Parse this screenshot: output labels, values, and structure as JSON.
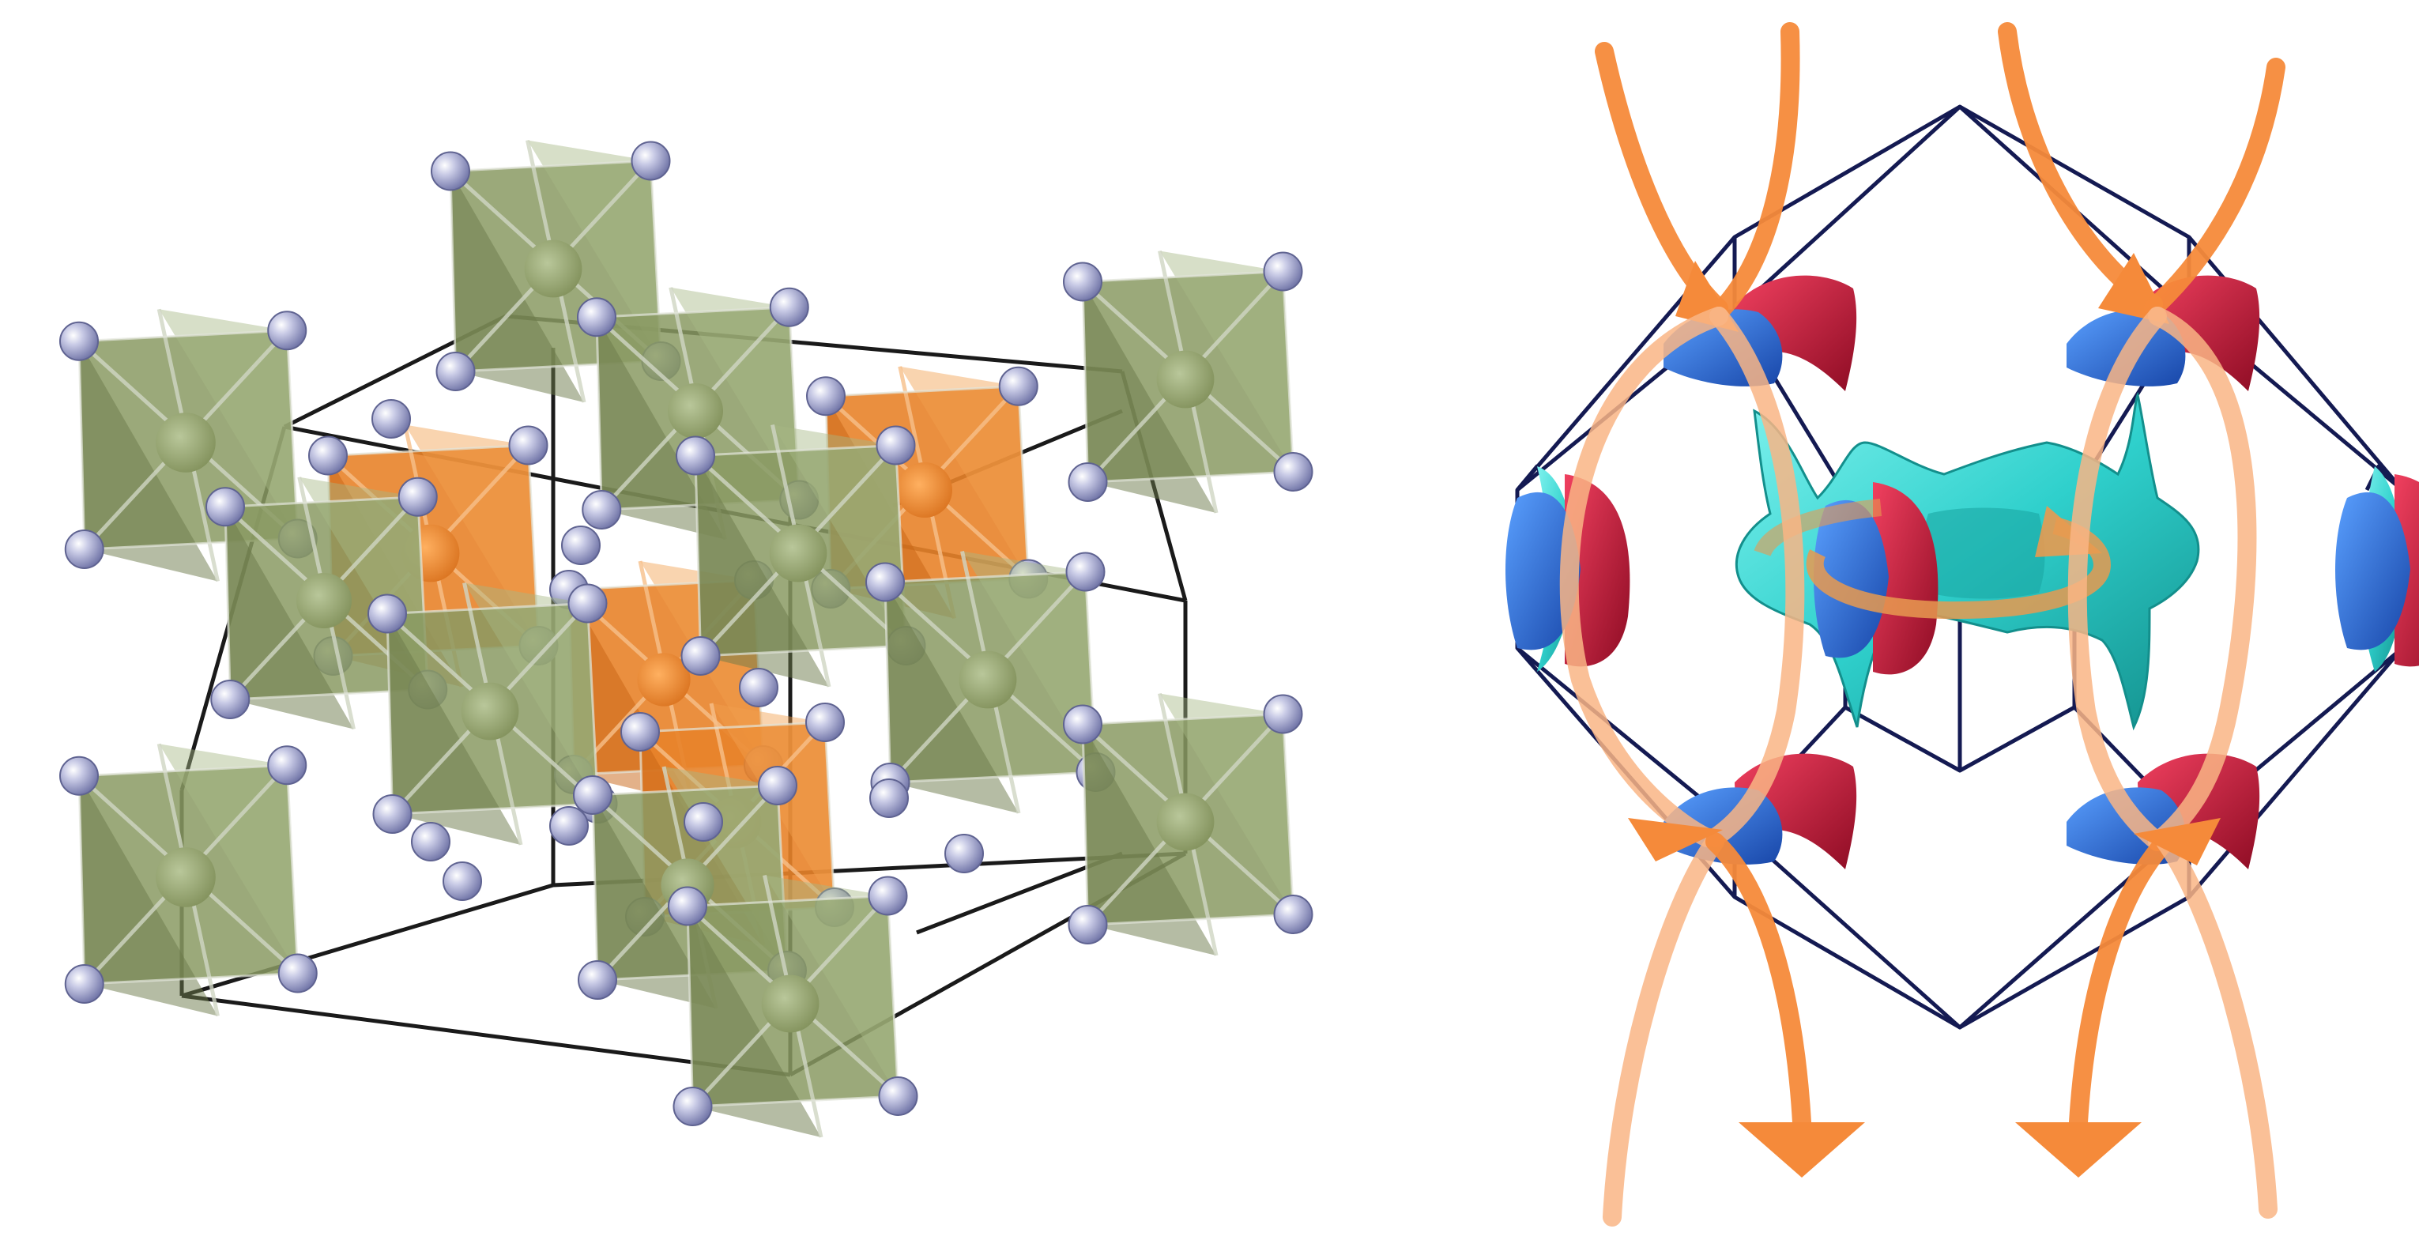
{
  "figure": {
    "panels": [
      {
        "name": "crystal-structure-panel",
        "content": "octahedral-crystal-structure",
        "colors": {
          "green_octahedron": "#8a9a63",
          "green_octahedron_dark": "#6b7a4a",
          "green_octahedron_light": "#a7b786",
          "orange_octahedron": "#e8832a",
          "orange_octahedron_dark": "#c86414",
          "anion_atom": "#9ea2cf",
          "cell_edge": "#1a1a1a"
        }
      },
      {
        "name": "fermi-surface-panel",
        "content": "brillouin-zone-with-fermi-surface",
        "colors": {
          "zone_edge": "#141a52",
          "red_sheet": "#c8183c",
          "blue_sheet": "#1f63d6",
          "cyan_sheet": "#2fd0cc",
          "arrow_orange": "#f58a3a",
          "arrow_orange_light": "#f9b585"
        }
      }
    ]
  }
}
